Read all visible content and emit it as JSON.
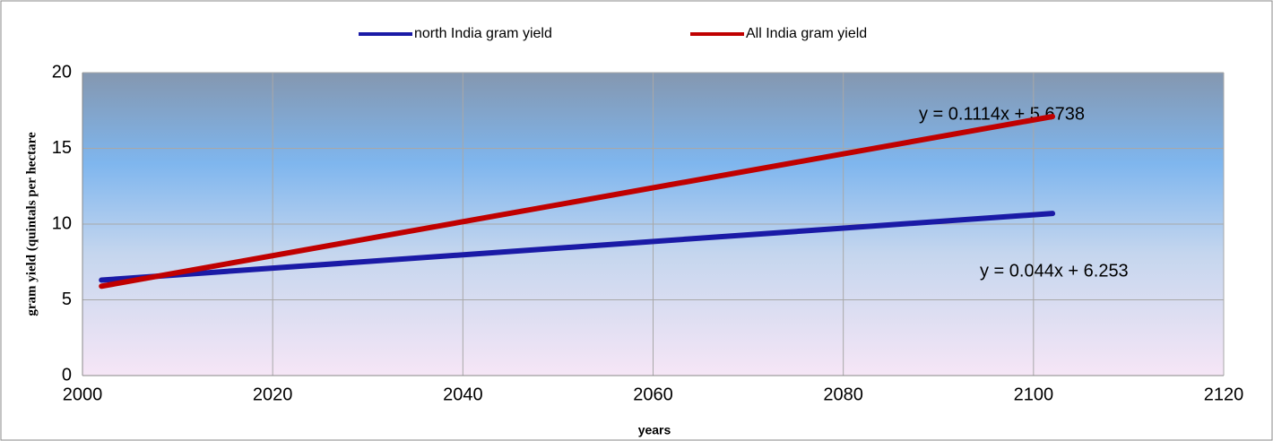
{
  "chart_data": {
    "type": "line",
    "x": [
      2002,
      2102
    ],
    "series": [
      {
        "name": "north India gram yield",
        "color": "#1a1aa6",
        "values": [
          6.3,
          10.7
        ]
      },
      {
        "name": "All India gram yield",
        "color": "#c00000",
        "values": [
          5.9,
          17.1
        ]
      }
    ],
    "annotations": [
      "y = 0.1114x + 5.6738",
      "y = 0.044x + 6.253"
    ],
    "x_label": "years",
    "y_label": "gram yield (quintals per hectare",
    "xlim": [
      2000,
      2120
    ],
    "xticks": [
      2000,
      2020,
      2040,
      2060,
      2080,
      2100,
      2120
    ],
    "ylim": [
      0,
      20
    ],
    "yticks": [
      0,
      5,
      10,
      15,
      20
    ],
    "grid": true,
    "legend": "top"
  }
}
